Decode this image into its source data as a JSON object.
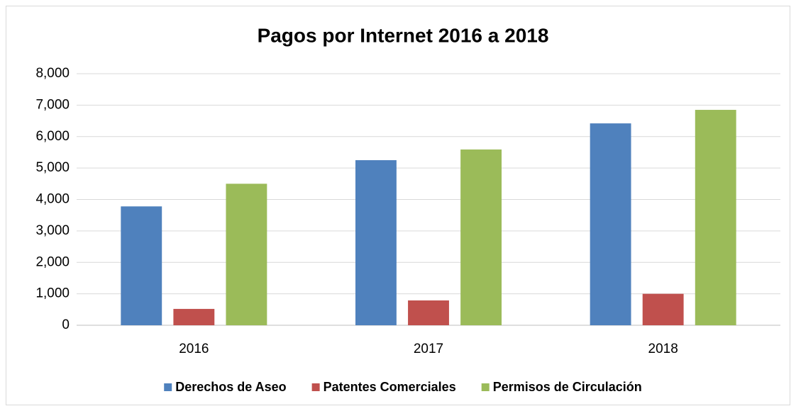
{
  "chart_data": {
    "type": "bar",
    "title": "Pagos por Internet 2016 a 2018",
    "categories": [
      "2016",
      "2017",
      "2018"
    ],
    "series": [
      {
        "name": "Derechos de Aseo",
        "color": "#4f81bd",
        "values": [
          3780,
          5250,
          6420
        ]
      },
      {
        "name": "Patentes Comerciales",
        "color": "#c0504d",
        "values": [
          520,
          790,
          1000
        ]
      },
      {
        "name": "Permisos de Circulación",
        "color": "#9bbb59",
        "values": [
          4500,
          5590,
          6850
        ]
      }
    ],
    "ylim": [
      0,
      8000
    ],
    "yticks": [
      0,
      {
        "value": 1000,
        "label": "1,000"
      },
      {
        "value": 2000,
        "label": "2,000"
      },
      {
        "value": 3000,
        "label": "3,000"
      },
      {
        "value": 4000,
        "label": "4,000"
      },
      {
        "value": 5000,
        "label": "5,000"
      },
      {
        "value": 6000,
        "label": "6,000"
      },
      {
        "value": 7000,
        "label": "7,000"
      },
      {
        "value": 8000,
        "label": "8,000"
      }
    ],
    "grid": true,
    "legend": "bottom"
  }
}
